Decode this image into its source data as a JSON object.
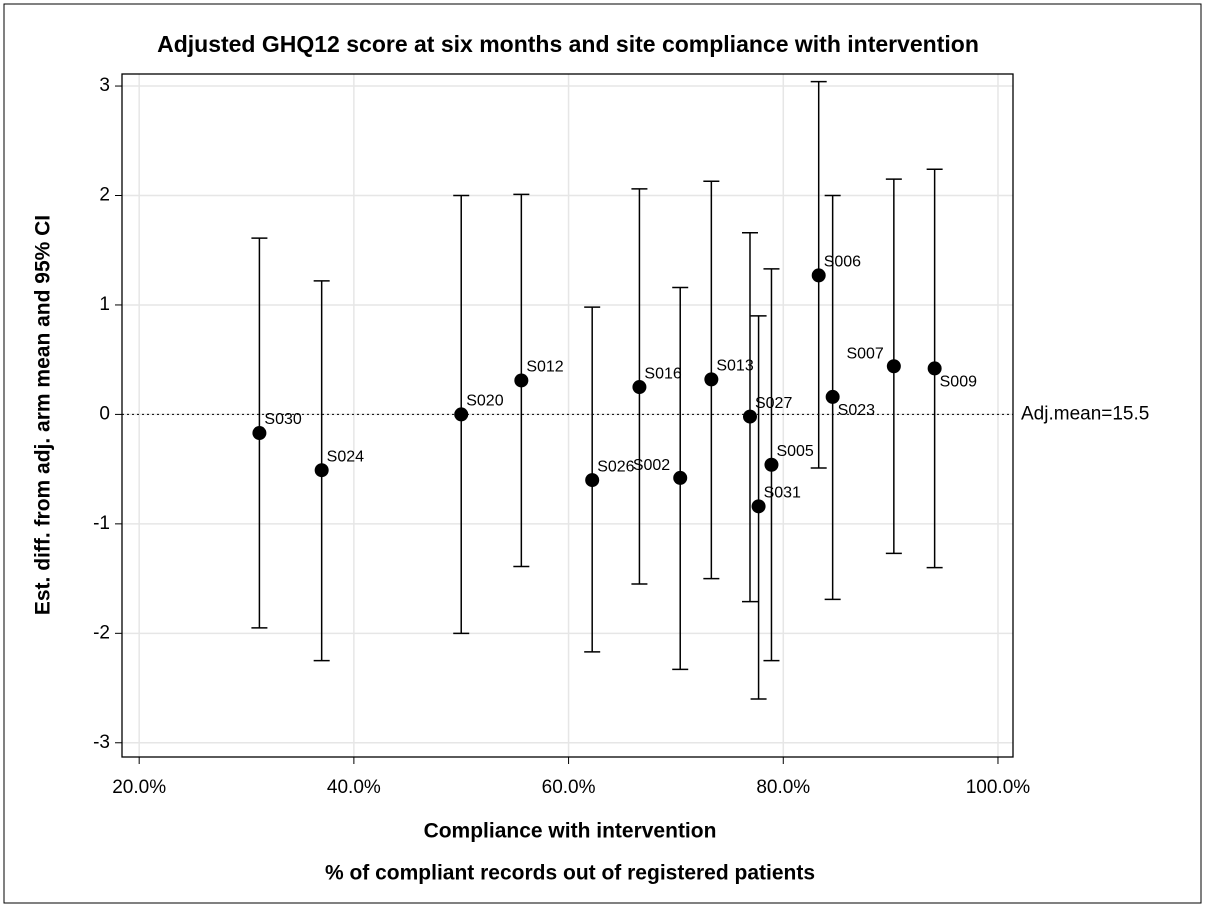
{
  "chart_data": {
    "type": "errorbar",
    "title": "Adjusted GHQ12 score at six months and site compliance with intervention",
    "x_label": "Compliance with intervention",
    "x_sublabel": "% of compliant records out of registered patients",
    "y_label": "Est. diff. from adj. arm mean and 95% CI",
    "labels": [
      "S030",
      "S024",
      "S020",
      "S012",
      "S026",
      "S016",
      "S002",
      "S013",
      "S027",
      "S031",
      "S005",
      "S006",
      "S023",
      "S007",
      "S009"
    ],
    "x": [
      31.2,
      37.0,
      50.0,
      55.6,
      62.2,
      66.6,
      70.4,
      73.3,
      76.9,
      77.7,
      78.9,
      83.3,
      84.6,
      90.3,
      94.1
    ],
    "values": [
      -0.17,
      -0.51,
      0,
      0.31,
      -0.6,
      0.25,
      -0.58,
      0.32,
      -0.02,
      -0.84,
      -0.46,
      1.27,
      0.16,
      0.44,
      0.42
    ],
    "ci_lower": [
      -1.95,
      -2.25,
      -2.0,
      -1.39,
      -2.17,
      -1.55,
      -2.33,
      -1.5,
      -1.71,
      -2.6,
      -2.25,
      -0.49,
      -1.69,
      -1.27,
      -1.4
    ],
    "ci_upper": [
      1.61,
      1.22,
      2.0,
      2.01,
      0.98,
      2.06,
      1.16,
      2.13,
      1.66,
      0.9,
      1.33,
      3.04,
      2.0,
      2.15,
      2.24
    ],
    "color": "#000000",
    "reference_line": {
      "value": 0,
      "label": "Adj.mean=15.5"
    },
    "xlim": [
      18.4,
      101.4
    ],
    "xticks": [
      {
        "value": 20,
        "label": "20.0%"
      },
      {
        "value": 40,
        "label": "40.0%"
      },
      {
        "value": 60,
        "label": "60.0%"
      },
      {
        "value": 80,
        "label": "80.0%"
      },
      {
        "value": 100,
        "label": "100.0%"
      }
    ],
    "ylim": [
      -3.13,
      3.11
    ],
    "yticks": [
      -3,
      -2,
      -1,
      0,
      1,
      2,
      3
    ],
    "grid": true
  }
}
